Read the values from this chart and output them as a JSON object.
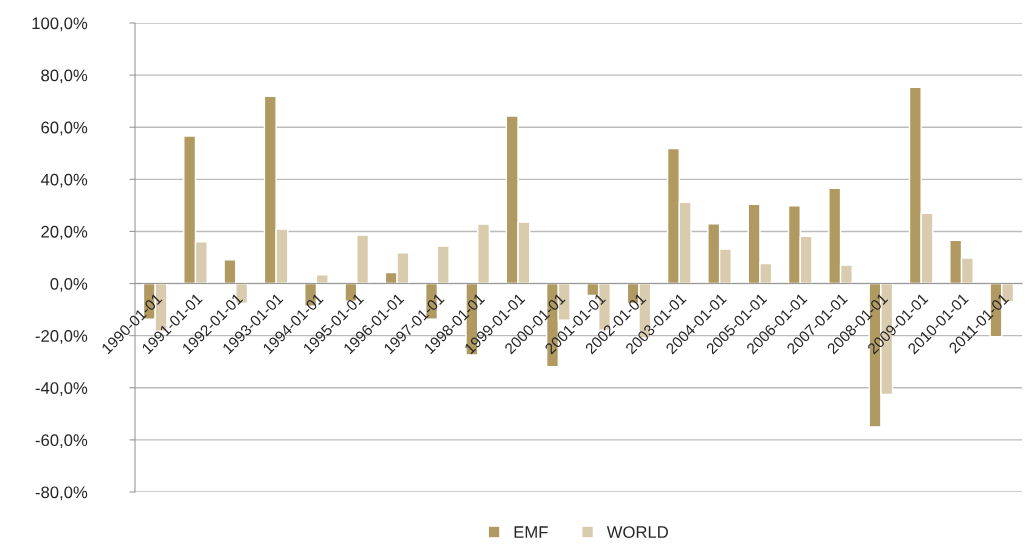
{
  "chart_data": {
    "type": "bar",
    "categories": [
      "1990-01-01",
      "1991-01-01",
      "1992-01-01",
      "1993-01-01",
      "1994-01-01",
      "1995-01-01",
      "1996-01-01",
      "1997-01-01",
      "1998-01-01",
      "1999-01-01",
      "2000-01-01",
      "2001-01-01",
      "2002-01-01",
      "2003-01-01",
      "2004-01-01",
      "2005-01-01",
      "2006-01-01",
      "2007-01-01",
      "2008-01-01",
      "2009-01-01",
      "2010-01-01",
      "2011-01-01"
    ],
    "series": [
      {
        "name": "EMF",
        "color": "#b09a62",
        "values": [
          -13.7,
          56.6,
          9.1,
          71.9,
          -8.7,
          -6.8,
          4.2,
          -13.7,
          -27.4,
          64.3,
          -31.9,
          -4.6,
          -7.6,
          51.8,
          22.9,
          30.4,
          29.8,
          36.6,
          -55.0,
          75.3,
          16.6,
          -20.4
        ]
      },
      {
        "name": "WORLD",
        "color": "#d9ccae",
        "values": [
          -18.3,
          16.0,
          -7.6,
          20.9,
          3.4,
          18.6,
          11.8,
          14.4,
          22.8,
          23.6,
          -14.1,
          -17.9,
          -20.9,
          31.2,
          13.2,
          7.7,
          18.1,
          7.1,
          -42.6,
          27.0,
          9.8,
          -7.1
        ]
      }
    ],
    "ylim": [
      -80,
      100
    ],
    "yticks": [
      {
        "value": -80,
        "label": "-80,0%"
      },
      {
        "value": -60,
        "label": "-60,0%"
      },
      {
        "value": -40,
        "label": "-40,0%"
      },
      {
        "value": -20,
        "label": "-20,0%"
      },
      {
        "value": 0,
        "label": "0,0%"
      },
      {
        "value": 20,
        "label": "20,0%"
      },
      {
        "value": 40,
        "label": "40,0%"
      },
      {
        "value": 60,
        "label": "60,0%"
      },
      {
        "value": 80,
        "label": "80,0%"
      },
      {
        "value": 100,
        "label": "100,0%"
      }
    ],
    "grid": "y",
    "legend": "bottom"
  }
}
